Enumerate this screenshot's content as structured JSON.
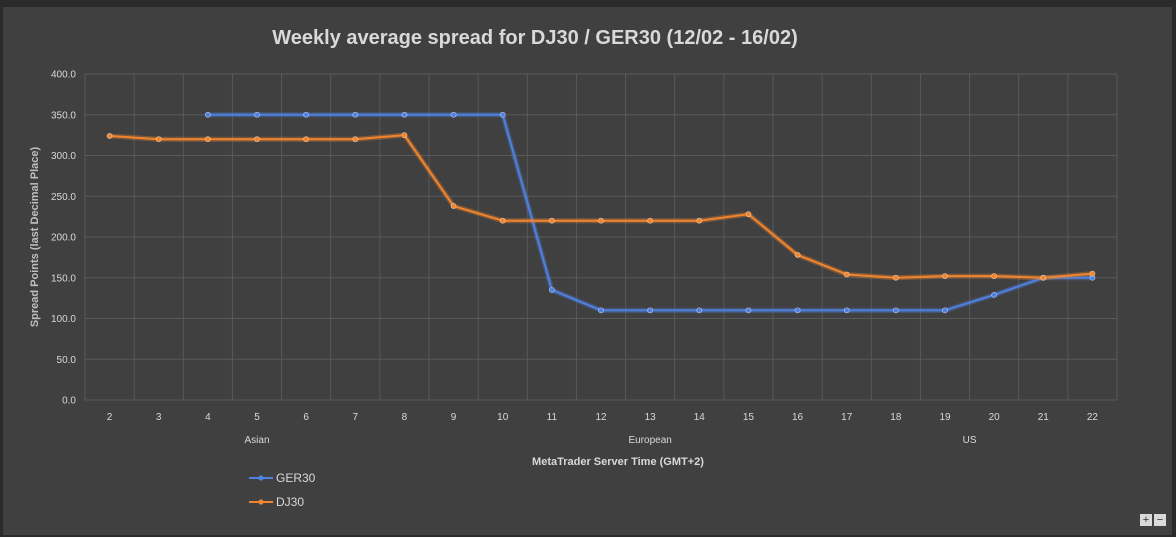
{
  "chart_data": {
    "type": "line",
    "title": "Weekly average spread for DJ30 / GER30  (12/02 - 16/02)",
    "ylabel": "Spread Points  (last Decimal Place)",
    "xlabel": "MetaTrader Server Time (GMT+2)",
    "ylim": [
      0,
      400
    ],
    "yticks": [
      "0.0",
      "50.0",
      "100.0",
      "150.0",
      "200.0",
      "250.0",
      "300.0",
      "350.0",
      "400.0"
    ],
    "categories": [
      "2",
      "3",
      "4",
      "5",
      "6",
      "7",
      "8",
      "9",
      "10",
      "11",
      "12",
      "13",
      "14",
      "15",
      "16",
      "17",
      "18",
      "19",
      "20",
      "21",
      "22"
    ],
    "sessions": [
      {
        "label": "Asian",
        "at": "5"
      },
      {
        "label": "European",
        "at": "13"
      },
      {
        "label": "US",
        "at": "19.5"
      }
    ],
    "series": [
      {
        "name": "GER30",
        "color": "#4f81e0",
        "values": [
          null,
          null,
          350,
          350,
          350,
          350,
          350,
          350,
          350,
          135,
          110,
          110,
          110,
          110,
          110,
          110,
          110,
          110,
          129,
          150,
          150
        ]
      },
      {
        "name": "DJ30",
        "color": "#f0852e",
        "values": [
          324,
          320,
          320,
          320,
          320,
          320,
          325,
          238,
          220,
          220,
          220,
          220,
          220,
          228,
          178,
          154,
          150,
          152,
          152,
          150,
          155
        ]
      }
    ],
    "legend": "bottom-left",
    "grid": true
  },
  "controls": {
    "plus": "+",
    "minus": "−"
  }
}
